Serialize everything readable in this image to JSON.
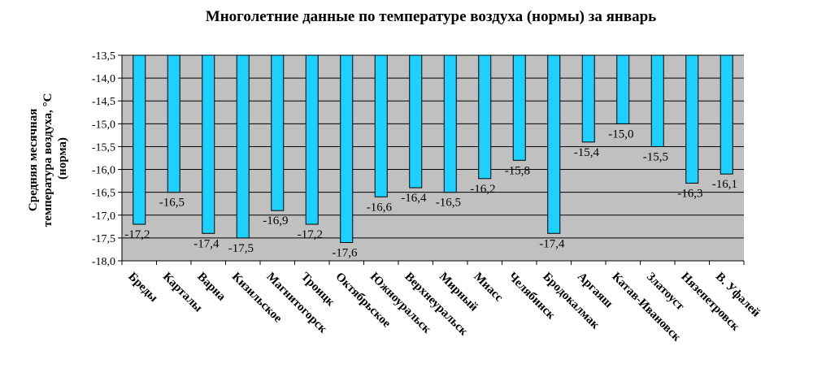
{
  "chart_data": {
    "type": "bar",
    "title": "Многолетние данные по температуре воздуха (нормы) за январь",
    "ylabel": [
      "Средняя месячная",
      "температура воздуха, °С",
      "(норма)"
    ],
    "xlabel": "",
    "categories": [
      "Бреды",
      "Карталы",
      "Варна",
      "Кизильское",
      "Магнитогорск",
      "Троицк",
      "Октябрьское",
      "Южноуральск",
      "Верхнеуральск",
      "Мирный",
      "Миасс",
      "Челябинск",
      "Бродокалмак",
      "Аргаяш",
      "Катав-Ивановск",
      "Златоуст",
      "Нязепетровск",
      "В. Уфалей"
    ],
    "values": [
      -17.2,
      -16.5,
      -17.4,
      -17.5,
      -16.9,
      -17.2,
      -17.6,
      -16.6,
      -16.4,
      -16.5,
      -16.2,
      -15.8,
      -17.4,
      -15.4,
      -15.0,
      -15.5,
      -16.3,
      -16.1
    ],
    "value_labels": [
      "-17,2",
      "-16,5",
      "-17,4",
      "-17,5",
      "-16,9",
      "-17,2",
      "-17,6",
      "-16,6",
      "-16,4",
      "-16,5",
      "-16,2",
      "-15,8",
      "-17,4",
      "-15,4",
      "-15,0",
      "-15,5",
      "-16,3",
      "-16,1"
    ],
    "ylim": [
      -18.0,
      -13.5
    ],
    "y_ticks": [
      -13.5,
      -14.0,
      -14.5,
      -15.0,
      -15.5,
      -16.0,
      -16.5,
      -17.0,
      -17.5,
      -18.0
    ],
    "y_tick_labels": [
      "-13,5",
      "-14,0",
      "-14,5",
      "-15,0",
      "-15,5",
      "-16,0",
      "-16,5",
      "-17,0",
      "-17,5",
      "-18,0"
    ],
    "grid": true,
    "legend": "none",
    "colors": {
      "bar_fill": "#1fd0ff",
      "bar_stroke": "#000000",
      "plot_background": "#c0c0c0",
      "grid": "#000000"
    }
  }
}
